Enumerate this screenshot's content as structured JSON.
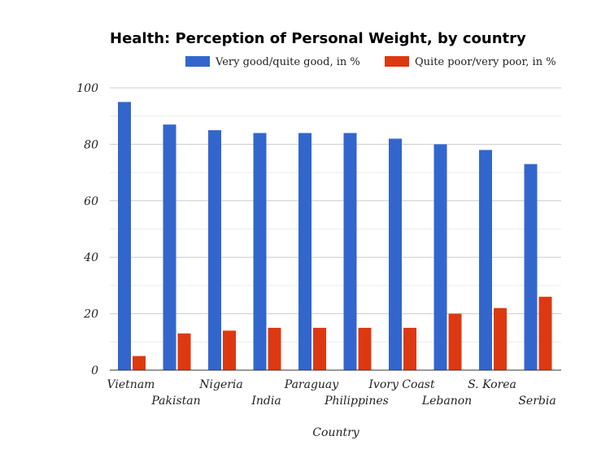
{
  "chart_data": {
    "type": "bar",
    "title": "Health: Perception of Personal Weight, by country",
    "xlabel": "Country",
    "ylabel": "",
    "ylim": [
      0,
      100
    ],
    "yticks": [
      0,
      20,
      40,
      60,
      80,
      100
    ],
    "grid": true,
    "legend_position": "top-right",
    "categories": [
      "Vietnam",
      "Pakistan",
      "Nigeria",
      "India",
      "Paraguay",
      "Philippines",
      "Ivory Coast",
      "Lebanon",
      "S. Korea",
      "Serbia"
    ],
    "series": [
      {
        "name": "Very good/quite good, in %",
        "color": "#3366cc",
        "values": [
          95,
          87,
          85,
          84,
          84,
          84,
          82,
          80,
          78,
          73
        ]
      },
      {
        "name": "Quite poor/very poor, in %",
        "color": "#dc3912",
        "values": [
          5,
          13,
          14,
          15,
          15,
          15,
          15,
          20,
          22,
          26
        ]
      }
    ]
  }
}
